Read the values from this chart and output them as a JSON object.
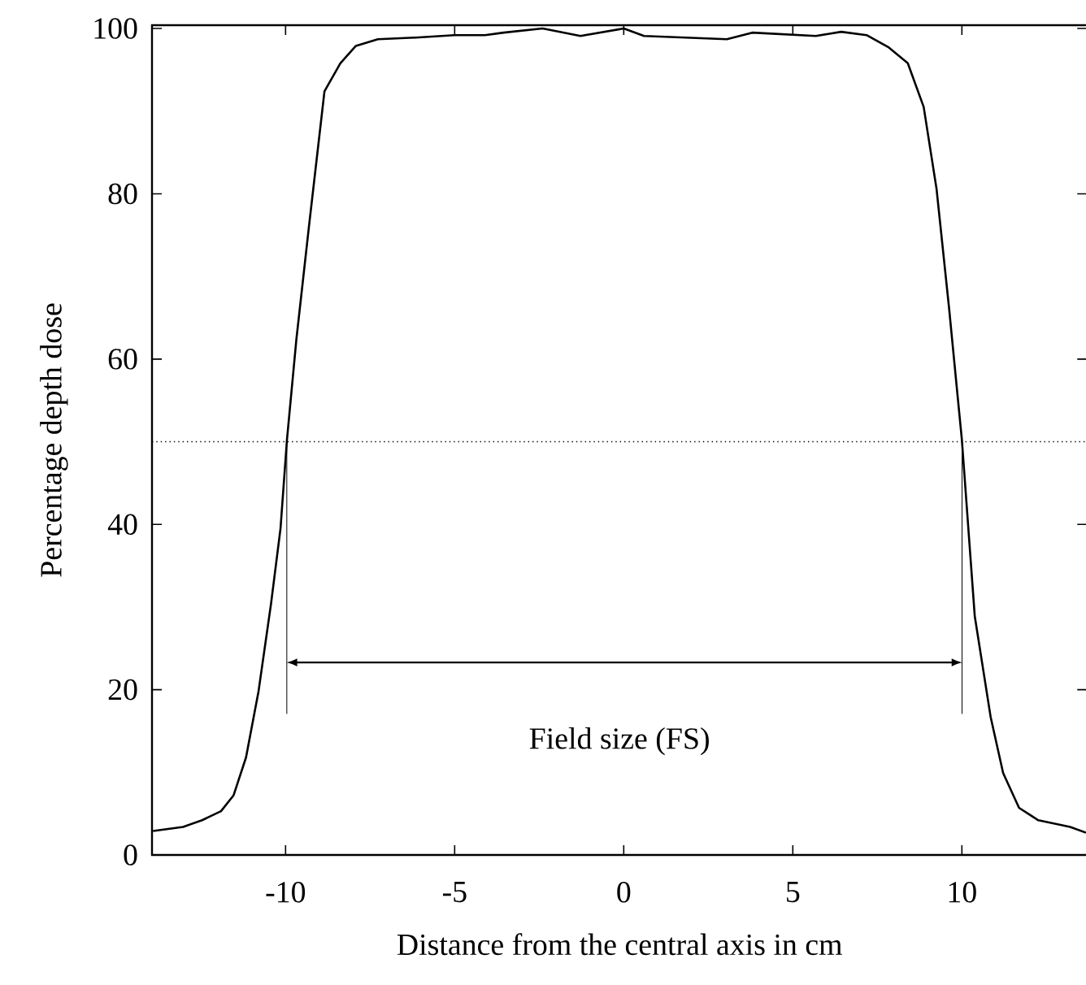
{
  "chart_data": {
    "type": "line",
    "xlabel": "Distance from the central axis in cm",
    "ylabel": "Percentage depth dose",
    "x": [
      -13.92,
      -13.03,
      -12.47,
      -11.91,
      -11.54,
      -11.17,
      -10.8,
      -10.43,
      -10.15,
      -9.96,
      -9.68,
      -9.31,
      -8.85,
      -8.38,
      -7.92,
      -7.27,
      -6.15,
      -5,
      -4.1,
      -3.55,
      -2.4,
      -1.28,
      0,
      0.6,
      3.05,
      3.8,
      5.68,
      6.43,
      7.18,
      7.84,
      8.4,
      8.87,
      9.25,
      9.62,
      10,
      10.38,
      10.85,
      11.22,
      11.69,
      12.26,
      13.2,
      13.67
    ],
    "series": [
      {
        "color": "#000000",
        "values": [
          2.9,
          3.4,
          4.2,
          5.3,
          7.2,
          11.8,
          19.8,
          30.4,
          39.5,
          50.2,
          62.4,
          76.0,
          92.4,
          95.8,
          97.9,
          98.7,
          98.9,
          99.2,
          99.2,
          99.5,
          100,
          99.1,
          100,
          99.1,
          98.7,
          99.5,
          99.1,
          99.6,
          99.2,
          97.7,
          95.8,
          90.5,
          80.6,
          66.2,
          50.2,
          28.9,
          16.7,
          9.9,
          5.7,
          4.2,
          3.4,
          2.7
        ]
      }
    ],
    "xlim": [
      -13.95,
      13.7
    ],
    "ylim": [
      0,
      100.4
    ],
    "xticks": [
      -10,
      -5,
      0,
      5,
      10
    ],
    "yticks": [
      0,
      20,
      40,
      60,
      80,
      100
    ],
    "ref_lines": [
      {
        "axis": "y",
        "value": 50,
        "color": "#000000",
        "line_style": "dotted"
      }
    ],
    "annotations": [
      "Field size (FS)"
    ],
    "grid": false
  }
}
